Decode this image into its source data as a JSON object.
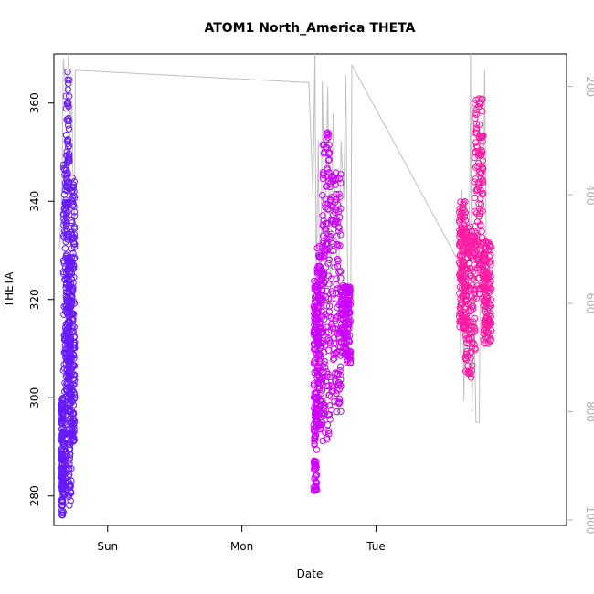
{
  "chart_data": {
    "type": "scatter",
    "title": "ATOM1 North_America THETA",
    "xlabel": "Date",
    "ylabel": "THETA",
    "x_ticks": [
      "Sun",
      "Mon",
      "Tue"
    ],
    "y_ticks": [
      280,
      300,
      320,
      340,
      360
    ],
    "y_right_ticks": [
      200,
      400,
      600,
      800,
      1000
    ],
    "ylim": [
      274,
      370
    ],
    "y_right_lim": [
      1010,
      140
    ],
    "y_right_reversed": true,
    "grid": false,
    "legend": "none",
    "x_day_range": [
      -0.4,
      3.42
    ],
    "series": [
      {
        "color": "#6619ff",
        "time_range": [
          -0.35,
          -0.24
        ],
        "y_range": [
          276,
          367
        ],
        "clusters": [
          {
            "t": [
              -0.345,
              -0.33
            ],
            "y": [
              276,
              300
            ]
          },
          {
            "t": [
              -0.33,
              -0.3
            ],
            "y": [
              280,
              348
            ]
          },
          {
            "t": [
              -0.31,
              -0.285
            ],
            "y": [
              300,
              367
            ]
          },
          {
            "t": [
              -0.29,
              -0.27
            ],
            "y": [
              278,
              330
            ]
          },
          {
            "t": [
              -0.27,
              -0.245
            ],
            "y": [
              291,
              345
            ]
          }
        ]
      },
      {
        "color": "#cc00ff",
        "time_range": [
          1.53,
          1.81
        ],
        "y_range": [
          281,
          354
        ],
        "clusters": [
          {
            "t": [
              1.535,
              1.56
            ],
            "y": [
              281,
              324
            ]
          },
          {
            "t": [
              1.56,
              1.6
            ],
            "y": [
              293,
              331
            ]
          },
          {
            "t": [
              1.6,
              1.66
            ],
            "y": [
              291,
              354
            ]
          },
          {
            "t": [
              1.66,
              1.74
            ],
            "y": [
              297,
              346
            ]
          },
          {
            "t": [
              1.74,
              1.81
            ],
            "y": [
              307,
              323
            ]
          }
        ]
      },
      {
        "color": "#ff1aa3",
        "time_range": [
          2.62,
          2.86
        ],
        "y_range": [
          304,
          361
        ],
        "clusters": [
          {
            "t": [
              2.62,
              2.67
            ],
            "y": [
              314,
              340
            ]
          },
          {
            "t": [
              2.66,
              2.74
            ],
            "y": [
              304,
              335
            ]
          },
          {
            "t": [
              2.73,
              2.8
            ],
            "y": [
              320,
              361
            ]
          },
          {
            "t": [
              2.8,
              2.86
            ],
            "y": [
              311,
              332
            ]
          }
        ]
      }
    ],
    "line": {
      "color": "#bfbfbf",
      "axis": "right",
      "points": [
        [
          -0.36,
          500
        ],
        [
          -0.34,
          400
        ],
        [
          -0.33,
          150
        ],
        [
          -0.31,
          210
        ],
        [
          -0.29,
          140
        ],
        [
          -0.28,
          270
        ],
        [
          -0.265,
          230
        ],
        [
          -0.25,
          540
        ],
        [
          -0.24,
          170
        ],
        [
          -0.24,
          170
        ],
        [
          1.5,
          193
        ],
        [
          1.53,
          400
        ],
        [
          1.545,
          140
        ],
        [
          1.555,
          560
        ],
        [
          1.57,
          300
        ],
        [
          1.585,
          720
        ],
        [
          1.6,
          190
        ],
        [
          1.62,
          500
        ],
        [
          1.64,
          200
        ],
        [
          1.66,
          600
        ],
        [
          1.68,
          250
        ],
        [
          1.7,
          460
        ],
        [
          1.72,
          580
        ],
        [
          1.74,
          300
        ],
        [
          1.76,
          410
        ],
        [
          1.775,
          180
        ],
        [
          1.79,
          570
        ],
        [
          1.81,
          660
        ],
        [
          1.82,
          160
        ],
        [
          2.62,
          525
        ],
        [
          2.63,
          700
        ],
        [
          2.64,
          390
        ],
        [
          2.655,
          780
        ],
        [
          2.67,
          440
        ],
        [
          2.69,
          520
        ],
        [
          2.7,
          360
        ],
        [
          2.705,
          140
        ],
        [
          2.715,
          800
        ],
        [
          2.73,
          620
        ],
        [
          2.745,
          820
        ],
        [
          2.77,
          820
        ],
        [
          2.78,
          430
        ],
        [
          2.8,
          390
        ],
        [
          2.81,
          170
        ],
        [
          2.825,
          580
        ],
        [
          2.84,
          660
        ],
        [
          2.86,
          650
        ]
      ]
    }
  }
}
